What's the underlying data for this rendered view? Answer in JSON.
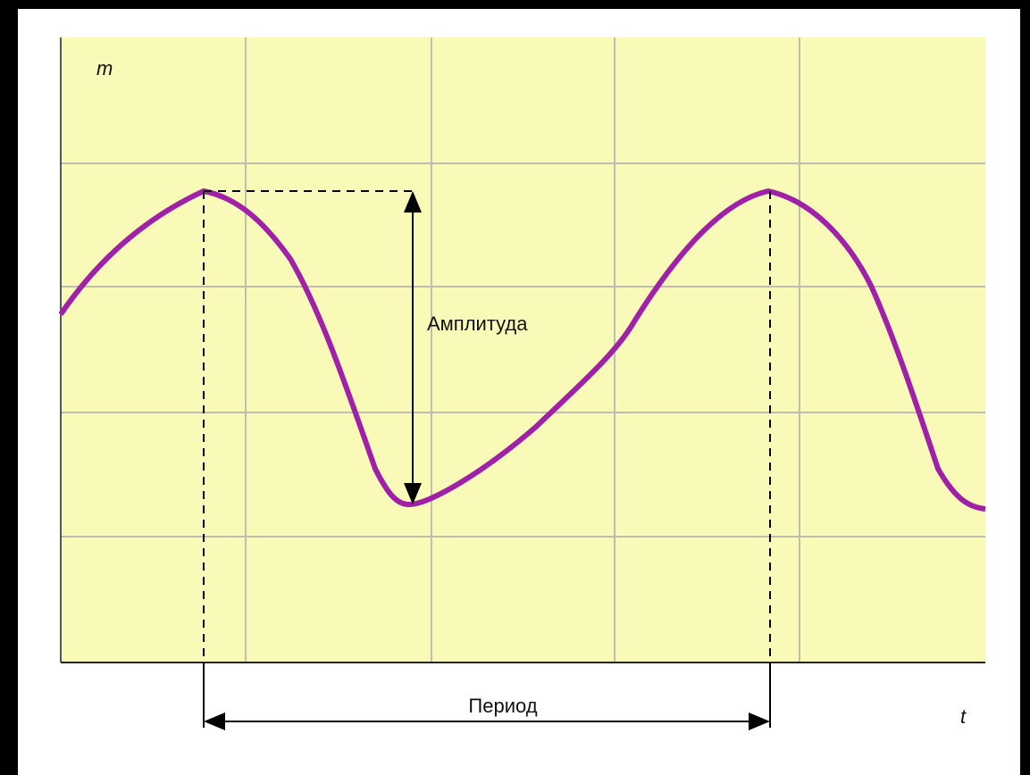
{
  "axes": {
    "y_label": "m",
    "x_label": "t"
  },
  "annotations": {
    "amplitude": "Амплитуда",
    "period": "Период"
  }
}
